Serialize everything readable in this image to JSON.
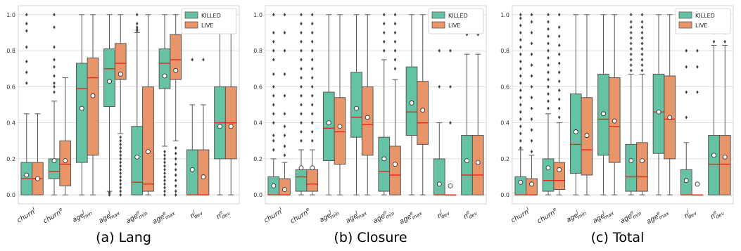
{
  "figure": {
    "colors": {
      "killed": "#66c2a5",
      "live": "#e8956a",
      "median": "#e8251c",
      "whisker": "#555555",
      "grid": "#d5d5d5"
    },
    "legend_position": "top-right",
    "legend_labels": [
      "KILLED",
      "LIVE"
    ]
  },
  "chart_data": [
    {
      "type": "box",
      "panel_label": "(a)",
      "title": "Lang",
      "ylim": [
        0,
        1.0
      ],
      "yticks": [
        "0.0",
        "0.2",
        "0.4",
        "0.6",
        "0.8",
        "1.0"
      ],
      "grid": true,
      "legend": "top-right",
      "categories": [
        "churn^l",
        "churn^e",
        "age^l_min",
        "age^l_max",
        "age^e_min",
        "age^e_max",
        "n^l_dev",
        "n^e_dev"
      ],
      "series": [
        {
          "name": "KILLED",
          "boxes": [
            {
              "q1": 0.0,
              "median": 0.09,
              "q3": 0.18,
              "whislo": 0.0,
              "whishi": 0.45,
              "mean": 0.11,
              "fliers": [
                0.62,
                0.68,
                0.74,
                0.82,
                0.91,
                0.95,
                1.0
              ]
            },
            {
              "q1": 0.09,
              "median": 0.13,
              "q3": 0.2,
              "whislo": 0.0,
              "whishi": 0.52,
              "mean": 0.19,
              "fliers": [
                0.57,
                0.6,
                0.62,
                0.66,
                0.71,
                0.75,
                0.82,
                0.93,
                1.0
              ]
            },
            {
              "q1": 0.18,
              "median": 0.59,
              "q3": 0.73,
              "whislo": 0.0,
              "whishi": 1.0,
              "mean": 0.48,
              "fliers": []
            },
            {
              "q1": 0.49,
              "median": 0.7,
              "q3": 0.81,
              "whislo": 0.02,
              "whishi": 1.0,
              "mean": 0.63,
              "fliers": [
                0.0,
                0.01,
                0.015
              ]
            },
            {
              "q1": 0.0,
              "median": 0.07,
              "q3": 0.38,
              "whislo": 0.0,
              "whishi": 0.9,
              "mean": 0.21,
              "fliers": [
                0.91,
                0.92,
                0.93,
                0.95,
                1.0
              ]
            },
            {
              "q1": 0.59,
              "median": 0.73,
              "q3": 0.81,
              "whislo": 0.27,
              "whishi": 1.0,
              "mean": 0.66,
              "fliers": [
                0.0,
                0.02,
                0.04,
                0.06,
                0.08,
                0.1,
                0.12,
                0.14,
                0.16,
                0.18,
                0.2,
                0.22,
                0.24
              ]
            },
            {
              "q1": 0.0,
              "median": 0.0,
              "q3": 0.25,
              "whislo": 0.0,
              "whishi": 0.5,
              "mean": 0.14,
              "fliers": [
                0.75
              ]
            },
            {
              "q1": 0.2,
              "median": 0.4,
              "q3": 0.6,
              "whislo": 0.0,
              "whishi": 1.0,
              "mean": 0.38,
              "fliers": []
            }
          ]
        },
        {
          "name": "LIVE",
          "boxes": [
            {
              "q1": 0.0,
              "median": 0.09,
              "q3": 0.18,
              "whislo": 0.0,
              "whishi": 0.45,
              "mean": 0.09,
              "fliers": []
            },
            {
              "q1": 0.05,
              "median": 0.17,
              "q3": 0.3,
              "whislo": 0.0,
              "whishi": 0.65,
              "mean": 0.19,
              "fliers": []
            },
            {
              "q1": 0.22,
              "median": 0.65,
              "q3": 0.76,
              "whislo": 0.0,
              "whishi": 1.0,
              "mean": 0.55,
              "fliers": []
            },
            {
              "q1": 0.64,
              "median": 0.73,
              "q3": 0.84,
              "whislo": 0.34,
              "whishi": 1.0,
              "mean": 0.67,
              "fliers": [
                0.0,
                0.02,
                0.04,
                0.06,
                0.08,
                0.1,
                0.12,
                0.14,
                0.16,
                0.18,
                0.2,
                0.22,
                0.24,
                0.26,
                0.28,
                0.3,
                0.32
              ]
            },
            {
              "q1": 0.02,
              "median": 0.06,
              "q3": 0.6,
              "whislo": 0.0,
              "whishi": 1.0,
              "mean": 0.24,
              "fliers": []
            },
            {
              "q1": 0.64,
              "median": 0.75,
              "q3": 0.89,
              "whislo": 0.3,
              "whishi": 1.0,
              "mean": 0.69,
              "fliers": [
                0.0,
                0.02,
                0.05,
                0.08,
                0.11,
                0.14,
                0.17,
                0.2,
                0.23,
                0.26
              ]
            },
            {
              "q1": 0.0,
              "median": 0.0,
              "q3": 0.25,
              "whislo": 0.0,
              "whishi": 0.5,
              "mean": 0.1,
              "fliers": [
                0.75
              ]
            },
            {
              "q1": 0.2,
              "median": 0.4,
              "q3": 0.6,
              "whislo": 0.0,
              "whishi": 1.0,
              "mean": 0.38,
              "fliers": []
            }
          ]
        }
      ]
    },
    {
      "type": "box",
      "panel_label": "(b)",
      "title": "Closure",
      "ylim": [
        0,
        1.0
      ],
      "yticks": [
        "0.0",
        "0.2",
        "0.4",
        "0.6",
        "0.8",
        "1.0"
      ],
      "grid": true,
      "legend": "top-right",
      "categories": [
        "churn^l",
        "churn^e",
        "age^l_min",
        "age^l_max",
        "age^e_min",
        "age^e_max",
        "n^l_dev",
        "n^e_dev"
      ],
      "series": [
        {
          "name": "KILLED",
          "boxes": [
            {
              "q1": 0.0,
              "median": 0.0,
              "q3": 0.1,
              "whislo": 0.0,
              "whishi": 0.2,
              "mean": 0.05,
              "fliers": [
                0.25,
                0.3,
                0.33,
                0.4,
                0.45,
                0.5,
                0.55,
                0.6,
                0.67,
                0.75,
                0.8,
                0.85,
                0.9,
                1.0
              ]
            },
            {
              "q1": 0.02,
              "median": 0.1,
              "q3": 0.14,
              "whislo": 0.0,
              "whishi": 0.25,
              "mean": 0.15,
              "fliers": [
                0.3,
                0.35,
                0.4,
                0.45,
                0.5,
                0.55,
                0.6,
                0.65,
                0.7,
                0.75,
                0.8,
                0.85,
                0.9,
                0.95,
                1.0
              ]
            },
            {
              "q1": 0.19,
              "median": 0.37,
              "q3": 0.57,
              "whislo": 0.0,
              "whishi": 1.0,
              "mean": 0.4,
              "fliers": []
            },
            {
              "q1": 0.32,
              "median": 0.43,
              "q3": 0.68,
              "whislo": 0.0,
              "whishi": 1.0,
              "mean": 0.48,
              "fliers": []
            },
            {
              "q1": 0.02,
              "median": 0.13,
              "q3": 0.32,
              "whislo": 0.0,
              "whishi": 0.75,
              "mean": 0.2,
              "fliers": [
                0.8,
                0.85,
                0.9,
                0.95,
                1.0
              ]
            },
            {
              "q1": 0.33,
              "median": 0.46,
              "q3": 0.71,
              "whislo": 0.0,
              "whishi": 1.0,
              "mean": 0.51,
              "fliers": []
            },
            {
              "q1": 0.0,
              "median": 0.0,
              "q3": 0.2,
              "whislo": 0.0,
              "whishi": 0.4,
              "mean": 0.06,
              "fliers": [
                0.6,
                0.8
              ]
            },
            {
              "q1": 0.0,
              "median": 0.11,
              "q3": 0.33,
              "whislo": 0.0,
              "whishi": 0.78,
              "mean": 0.19,
              "fliers": [
                0.89
              ]
            }
          ]
        },
        {
          "name": "LIVE",
          "boxes": [
            {
              "q1": 0.0,
              "median": 0.0,
              "q3": 0.09,
              "whislo": 0.0,
              "whishi": 0.18,
              "mean": 0.03,
              "fliers": [
                0.22,
                0.27,
                0.33,
                0.38,
                0.45,
                0.55,
                0.67,
                0.8,
                0.9,
                1.0
              ]
            },
            {
              "q1": 0.02,
              "median": 0.06,
              "q3": 0.14,
              "whislo": 0.0,
              "whishi": 0.25,
              "mean": 0.15,
              "fliers": [
                0.3,
                0.35,
                0.4,
                0.45,
                0.5,
                0.55,
                0.6,
                0.65,
                0.7,
                0.75,
                0.8,
                0.85,
                0.9,
                0.95,
                1.0
              ]
            },
            {
              "q1": 0.17,
              "median": 0.35,
              "q3": 0.54,
              "whislo": 0.0,
              "whishi": 1.0,
              "mean": 0.38,
              "fliers": []
            },
            {
              "q1": 0.22,
              "median": 0.39,
              "q3": 0.6,
              "whislo": 0.0,
              "whishi": 1.0,
              "mean": 0.43,
              "fliers": []
            },
            {
              "q1": 0.0,
              "median": 0.11,
              "q3": 0.27,
              "whislo": 0.0,
              "whishi": 0.64,
              "mean": 0.17,
              "fliers": [
                0.7,
                0.75,
                0.8,
                0.85,
                0.9,
                0.95,
                1.0
              ]
            },
            {
              "q1": 0.28,
              "median": 0.4,
              "q3": 0.63,
              "whislo": 0.0,
              "whishi": 1.0,
              "mean": 0.47,
              "fliers": []
            },
            {
              "q1": 0.0,
              "median": 0.0,
              "q3": 0.0,
              "whislo": 0.0,
              "whishi": 0.0,
              "mean": 0.05,
              "fliers": [
                0.4,
                0.6,
                0.8
              ]
            },
            {
              "q1": 0.0,
              "median": 0.11,
              "q3": 0.33,
              "whislo": 0.0,
              "whishi": 0.78,
              "mean": 0.18,
              "fliers": [
                0.89
              ]
            }
          ]
        }
      ]
    },
    {
      "type": "box",
      "panel_label": "(c)",
      "title": "Total",
      "ylim": [
        0,
        1.0
      ],
      "yticks": [
        "0.0",
        "0.2",
        "0.4",
        "0.6",
        "0.8",
        "1.0"
      ],
      "grid": true,
      "legend": "top-right",
      "categories": [
        "churn^l",
        "churn^e",
        "age^l_min",
        "age^l_max",
        "age^e_min",
        "age^e_max",
        "n^l_dev",
        "n^e_dev"
      ],
      "series": [
        {
          "name": "KILLED",
          "boxes": [
            {
              "q1": 0.0,
              "median": 0.0,
              "q3": 0.1,
              "whislo": 0.0,
              "whishi": 0.25,
              "mean": 0.07,
              "fliers": [
                0.26,
                0.3,
                0.34,
                0.38,
                0.42,
                0.46,
                0.5,
                0.54,
                0.58,
                0.62,
                0.66,
                0.7,
                0.74,
                0.78,
                0.82,
                0.86,
                0.9,
                0.94,
                0.98,
                1.0
              ]
            },
            {
              "q1": 0.02,
              "median": 0.08,
              "q3": 0.2,
              "whislo": 0.0,
              "whishi": 0.45,
              "mean": 0.15,
              "fliers": [
                0.48,
                0.52,
                0.56,
                0.6,
                0.64,
                0.68,
                0.72,
                0.76,
                0.8,
                0.84,
                0.88,
                0.92,
                0.96,
                1.0
              ]
            },
            {
              "q1": 0.12,
              "median": 0.28,
              "q3": 0.56,
              "whislo": 0.0,
              "whishi": 1.0,
              "mean": 0.35,
              "fliers": []
            },
            {
              "q1": 0.22,
              "median": 0.42,
              "q3": 0.67,
              "whislo": 0.0,
              "whishi": 1.0,
              "mean": 0.45,
              "fliers": []
            },
            {
              "q1": 0.02,
              "median": 0.1,
              "q3": 0.28,
              "whislo": 0.0,
              "whishi": 0.67,
              "mean": 0.19,
              "fliers": [
                0.69,
                0.72,
                0.75,
                0.78,
                0.81,
                0.84,
                0.87,
                0.9,
                0.93,
                0.96,
                1.0
              ]
            },
            {
              "q1": 0.23,
              "median": 0.46,
              "q3": 0.67,
              "whislo": 0.0,
              "whishi": 1.0,
              "mean": 0.46,
              "fliers": []
            },
            {
              "q1": 0.0,
              "median": 0.0,
              "q3": 0.14,
              "whislo": 0.0,
              "whishi": 0.29,
              "mean": 0.08,
              "fliers": [
                0.43,
                0.57,
                0.71,
                0.8
              ]
            },
            {
              "q1": 0.0,
              "median": 0.17,
              "q3": 0.33,
              "whislo": 0.0,
              "whishi": 0.83,
              "mean": 0.22,
              "fliers": [
                0.85,
                0.9,
                0.95,
                1.0
              ]
            }
          ]
        },
        {
          "name": "LIVE",
          "boxes": [
            {
              "q1": 0.0,
              "median": 0.0,
              "q3": 0.09,
              "whislo": 0.0,
              "whishi": 0.22,
              "mean": 0.06,
              "fliers": [
                0.24,
                0.3,
                0.36,
                0.42,
                0.48,
                0.54,
                0.6,
                0.66,
                0.72,
                0.78,
                0.84,
                0.9,
                0.96,
                1.0
              ]
            },
            {
              "q1": 0.03,
              "median": 0.08,
              "q3": 0.18,
              "whislo": 0.0,
              "whishi": 0.4,
              "mean": 0.14,
              "fliers": [
                0.43,
                0.48,
                0.53,
                0.58,
                0.63,
                0.68,
                0.73,
                0.78,
                0.83,
                0.88,
                0.93,
                1.0
              ]
            },
            {
              "q1": 0.11,
              "median": 0.25,
              "q3": 0.54,
              "whislo": 0.0,
              "whishi": 1.0,
              "mean": 0.33,
              "fliers": []
            },
            {
              "q1": 0.18,
              "median": 0.38,
              "q3": 0.65,
              "whislo": 0.0,
              "whishi": 1.0,
              "mean": 0.41,
              "fliers": []
            },
            {
              "q1": 0.02,
              "median": 0.1,
              "q3": 0.29,
              "whislo": 0.0,
              "whishi": 0.67,
              "mean": 0.19,
              "fliers": [
                0.69,
                0.72,
                0.75,
                0.78,
                0.81,
                0.84,
                0.87,
                0.9,
                0.93,
                0.96,
                1.0
              ]
            },
            {
              "q1": 0.2,
              "median": 0.42,
              "q3": 0.66,
              "whislo": 0.0,
              "whishi": 1.0,
              "mean": 0.43,
              "fliers": []
            },
            {
              "q1": 0.0,
              "median": 0.0,
              "q3": 0.0,
              "whislo": 0.0,
              "whishi": 0.0,
              "mean": 0.06,
              "fliers": [
                0.57,
                0.71,
                0.8
              ]
            },
            {
              "q1": 0.0,
              "median": 0.17,
              "q3": 0.33,
              "whislo": 0.0,
              "whishi": 0.83,
              "mean": 0.21,
              "fliers": [
                0.85,
                0.9,
                0.95,
                1.0
              ]
            }
          ]
        }
      ]
    }
  ]
}
